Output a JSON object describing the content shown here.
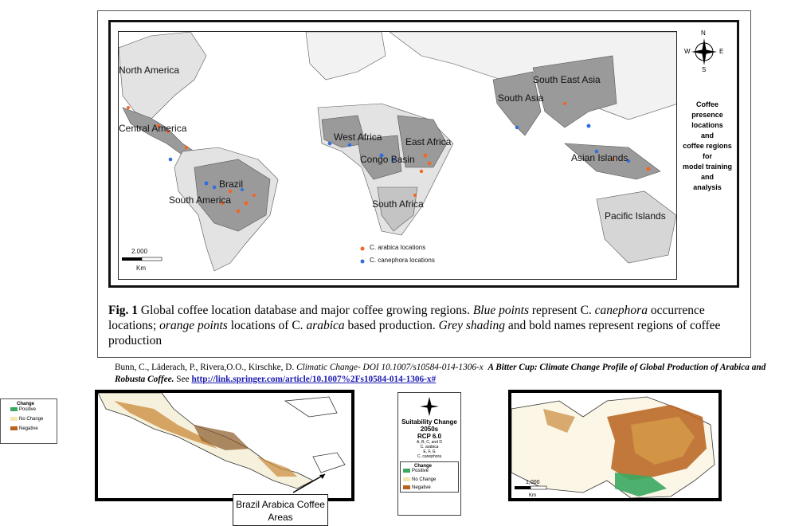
{
  "map": {
    "regions": [
      "North America",
      "Central America",
      "South America",
      "Brazil",
      "West Africa",
      "Congo Basin",
      "East Africa",
      "South Africa",
      "South Asia",
      "South East Asia",
      "Asian Islands",
      "Pacific Islands"
    ],
    "compass": [
      "N",
      "S",
      "E",
      "W"
    ],
    "side_title": [
      "Coffee",
      "presence",
      "locations",
      "and",
      "coffee regions",
      "for",
      "model training",
      "and",
      "analysis"
    ],
    "legend": {
      "arabica": "C. arabica locations",
      "canephora": "C. canephora locations"
    },
    "scale": {
      "value": "2.000",
      "unit": "Km"
    }
  },
  "caption": {
    "fig": "Fig. 1",
    "p1": "  Global coffee location database and major coffee growing regions. ",
    "i1": "Blue points",
    "p2": " represent C. ",
    "i2": "canephora",
    "p3": " occurrence locations; ",
    "i3": "orange points",
    "p4": " locations of C. ",
    "i4": "arabica",
    "p5": " based production. ",
    "i5": "Grey shading",
    "p6": " and bold names represent regions of coffee production"
  },
  "citation": {
    "authors": "Bunn, C., Läderach, P., Rivera,O.O., Kirschke, D. ",
    "journal": "Climatic Change- DOI 10.1007/s10584-014-1306-x",
    "title": "A Bitter Cup: Climate Change Profile of Global Production of Arabica and Robusta Coffee.",
    "see": " See ",
    "link": "http://link.springer.com/article/10.1007%2Fs10584-014-1306-x#"
  },
  "change_legend": {
    "title": "Change",
    "positive": "Positive",
    "no_change": "No Change",
    "negative": "Negative"
  },
  "rcp": {
    "line1": "Suitability Change",
    "line2": "2050s",
    "line3": "RCP 6.0",
    "sub1": "A, B, C, and D",
    "sub2": "C. arabica",
    "sub3": "E, F, G",
    "sub4": "C. canephora",
    "scale": "1,000",
    "scale_unit": "Km"
  },
  "callout": "Brazil Arabica Coffee Areas",
  "colors": {
    "arabica": "#f26522",
    "canephora": "#2f6fe0",
    "region": "#9a9a9a",
    "land": "#d8d8d8",
    "positive": "#3aa860",
    "negative": "#b8621c",
    "no_change": "#f3e6b0"
  }
}
